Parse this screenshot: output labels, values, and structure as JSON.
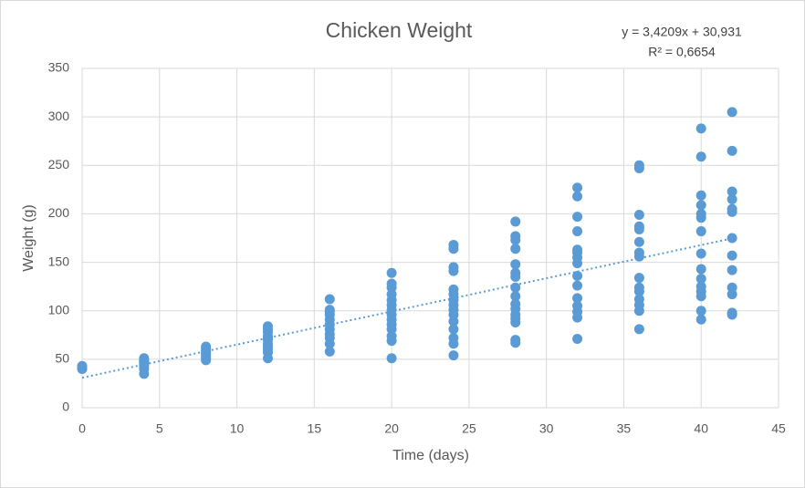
{
  "chart_data": {
    "type": "scatter",
    "title": "Chicken Weight",
    "x_label": "Time (days)",
    "y_label": "Weight (g)",
    "color": "#5b9bd5",
    "x": [
      0,
      0,
      0,
      0,
      4,
      4,
      4,
      4,
      4,
      4,
      4,
      4,
      4,
      8,
      8,
      8,
      8,
      8,
      8,
      8,
      8,
      12,
      12,
      12,
      12,
      12,
      12,
      12,
      12,
      12,
      12,
      12,
      16,
      16,
      16,
      16,
      16,
      16,
      16,
      16,
      16,
      16,
      16,
      20,
      20,
      20,
      20,
      20,
      20,
      20,
      20,
      20,
      20,
      20,
      20,
      20,
      20,
      24,
      24,
      24,
      24,
      24,
      24,
      24,
      24,
      24,
      24,
      24,
      24,
      24,
      24,
      24,
      28,
      28,
      28,
      28,
      28,
      28,
      28,
      28,
      28,
      28,
      28,
      28,
      28,
      28,
      28,
      28,
      32,
      32,
      32,
      32,
      32,
      32,
      32,
      32,
      32,
      32,
      32,
      32,
      32,
      32,
      32,
      36,
      36,
      36,
      36,
      36,
      36,
      36,
      36,
      36,
      36,
      36,
      36,
      36,
      36,
      36,
      40,
      40,
      40,
      40,
      40,
      40,
      40,
      40,
      40,
      40,
      40,
      40,
      40,
      40,
      40,
      42,
      42,
      42,
      42,
      42,
      42,
      42,
      42,
      42,
      42,
      42,
      42,
      42
    ],
    "values": [
      42,
      40,
      43,
      41,
      51,
      49,
      47,
      45,
      43,
      40,
      35,
      48,
      46,
      61,
      59,
      57,
      55,
      53,
      51,
      49,
      63,
      84,
      78,
      74,
      70,
      66,
      63,
      60,
      57,
      51,
      81,
      72,
      112,
      101,
      96,
      91,
      86,
      81,
      76,
      72,
      66,
      58,
      99,
      139,
      128,
      124,
      111,
      106,
      101,
      96,
      91,
      86,
      81,
      74,
      69,
      51,
      117,
      168,
      164,
      145,
      141,
      122,
      117,
      111,
      106,
      101,
      96,
      89,
      81,
      72,
      66,
      54,
      192,
      177,
      173,
      164,
      148,
      139,
      135,
      124,
      115,
      107,
      102,
      96,
      92,
      88,
      70,
      67,
      227,
      218,
      197,
      182,
      163,
      160,
      155,
      149,
      136,
      126,
      113,
      105,
      99,
      93,
      71,
      250,
      247,
      199,
      187,
      184,
      171,
      160,
      156,
      134,
      124,
      120,
      112,
      106,
      100,
      81,
      288,
      259,
      219,
      209,
      200,
      196,
      182,
      159,
      143,
      133,
      125,
      120,
      115,
      100,
      91,
      305,
      265,
      223,
      215,
      205,
      202,
      175,
      157,
      142,
      124,
      117,
      98,
      96
    ],
    "trendline": {
      "slope": 3.4209,
      "intercept": 30.931,
      "equation": "y = 3,4209x + 30,931",
      "r_squared": 0.6654,
      "r_squared_label": "R² = 0,6654"
    },
    "xlim": [
      0,
      45
    ],
    "xticks": [
      0,
      5,
      10,
      15,
      20,
      25,
      30,
      35,
      40,
      45
    ],
    "ylim": [
      0,
      350
    ],
    "yticks": [
      0,
      50,
      100,
      150,
      200,
      250,
      300,
      350
    ],
    "grid": true
  }
}
